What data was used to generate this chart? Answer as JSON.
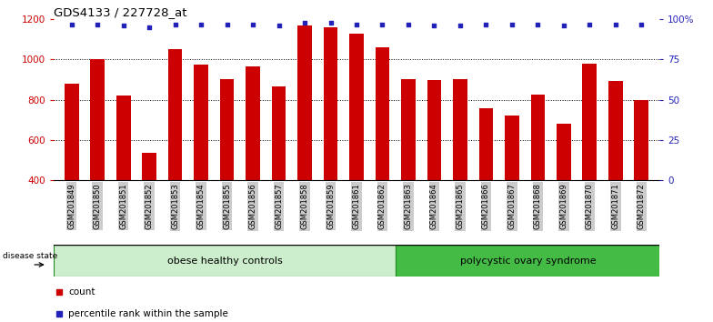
{
  "title": "GDS4133 / 227728_at",
  "samples": [
    "GSM201849",
    "GSM201850",
    "GSM201851",
    "GSM201852",
    "GSM201853",
    "GSM201854",
    "GSM201855",
    "GSM201856",
    "GSM201857",
    "GSM201858",
    "GSM201859",
    "GSM201861",
    "GSM201862",
    "GSM201863",
    "GSM201864",
    "GSM201865",
    "GSM201866",
    "GSM201867",
    "GSM201868",
    "GSM201869",
    "GSM201870",
    "GSM201871",
    "GSM201872"
  ],
  "counts": [
    880,
    1000,
    820,
    535,
    1050,
    975,
    905,
    965,
    865,
    1170,
    1160,
    1130,
    1060,
    905,
    900,
    905,
    760,
    720,
    825,
    680,
    980,
    895,
    800
  ],
  "percentiles": [
    97,
    97,
    96,
    95,
    97,
    97,
    97,
    97,
    96,
    98,
    98,
    97,
    97,
    97,
    96,
    96,
    97,
    97,
    97,
    96,
    97,
    97,
    97
  ],
  "group1_label": "obese healthy controls",
  "group1_count": 13,
  "group2_label": "polycystic ovary syndrome",
  "group2_count": 10,
  "disease_state_label": "disease state",
  "bar_color": "#cc0000",
  "dot_color": "#2222bb",
  "ylim_left": [
    400,
    1200
  ],
  "ylim_right": [
    0,
    100
  ],
  "yticks_left": [
    400,
    600,
    800,
    1000,
    1200
  ],
  "yticks_right": [
    0,
    25,
    50,
    75,
    100
  ],
  "hgrid_values": [
    600,
    800,
    1000
  ],
  "bg_color": "#ffffff",
  "tick_bg_color": "#cccccc",
  "group1_color": "#cceecc",
  "group2_color": "#44bb44",
  "group_edge_color": "#228822",
  "legend_count_label": "count",
  "legend_pct_label": "percentile rank within the sample",
  "bar_width": 0.55
}
